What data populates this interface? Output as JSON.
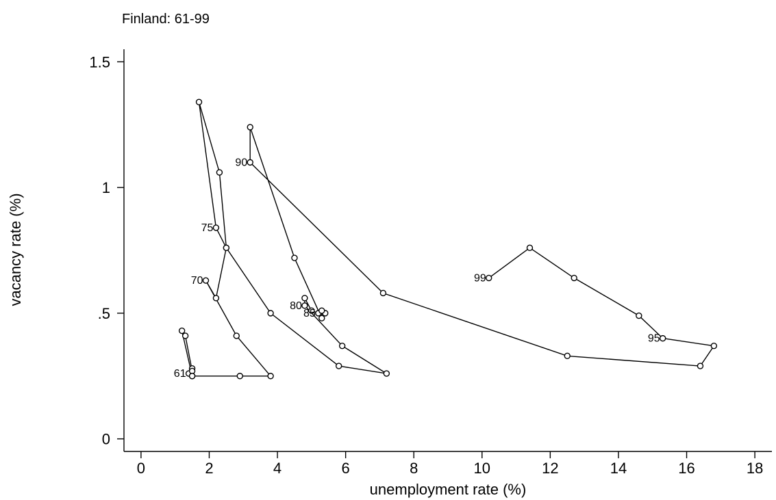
{
  "chart_data": {
    "type": "line",
    "title": "Finland: 61-99",
    "xlabel": "unemployment rate (%)",
    "ylabel": "vacancy rate (%)",
    "xlim": [
      -0.5,
      18.5
    ],
    "ylim": [
      -0.05,
      1.55
    ],
    "x_ticks": [
      0,
      2,
      4,
      6,
      8,
      10,
      12,
      14,
      16,
      18
    ],
    "y_ticks": [
      0,
      0.5,
      1,
      1.5
    ],
    "x_tick_labels": [
      "0",
      "2",
      "4",
      "6",
      "8",
      "10",
      "12",
      "14",
      "16",
      "18"
    ],
    "y_tick_labels": [
      "0",
      ".5",
      "1",
      "1.5"
    ],
    "grid": false,
    "marker": "circle",
    "color": "#000000",
    "series": [
      {
        "x": [
          1.4,
          1.5,
          1.5,
          1.5,
          1.3,
          1.2,
          1.5,
          2.9,
          3.8,
          2.8,
          1.9,
          2.2,
          2.5,
          2.3,
          1.7,
          2.2,
          2.5,
          3.8,
          5.8,
          7.2,
          5.9,
          4.8,
          4.8,
          5.0,
          5.2,
          5.4,
          5.3,
          5.3,
          4.5,
          3.2,
          3.2,
          7.1,
          12.5,
          16.4,
          16.8,
          15.3,
          14.6,
          12.7,
          11.4,
          10.2
        ],
        "y": [
          0.26,
          0.25,
          0.28,
          0.27,
          0.41,
          0.43,
          0.25,
          0.25,
          0.25,
          0.41,
          0.63,
          0.56,
          0.76,
          1.06,
          1.34,
          0.84,
          0.76,
          0.5,
          0.29,
          0.26,
          0.37,
          0.53,
          0.56,
          0.51,
          0.5,
          0.5,
          0.51,
          0.48,
          0.72,
          1.24,
          1.1,
          0.58,
          0.33,
          0.29,
          0.37,
          0.4,
          0.49,
          0.64,
          0.76,
          0.64
        ]
      }
    ],
    "point_labels": [
      {
        "text": "61",
        "x": 1.4,
        "y": 0.26
      },
      {
        "text": "70",
        "x": 1.9,
        "y": 0.63
      },
      {
        "text": "75",
        "x": 2.2,
        "y": 0.84
      },
      {
        "text": "80",
        "x": 4.8,
        "y": 0.53
      },
      {
        "text": "85",
        "x": 5.2,
        "y": 0.5
      },
      {
        "text": "90",
        "x": 3.2,
        "y": 1.1
      },
      {
        "text": "95",
        "x": 15.3,
        "y": 0.4
      },
      {
        "text": "99",
        "x": 10.2,
        "y": 0.64
      }
    ]
  }
}
